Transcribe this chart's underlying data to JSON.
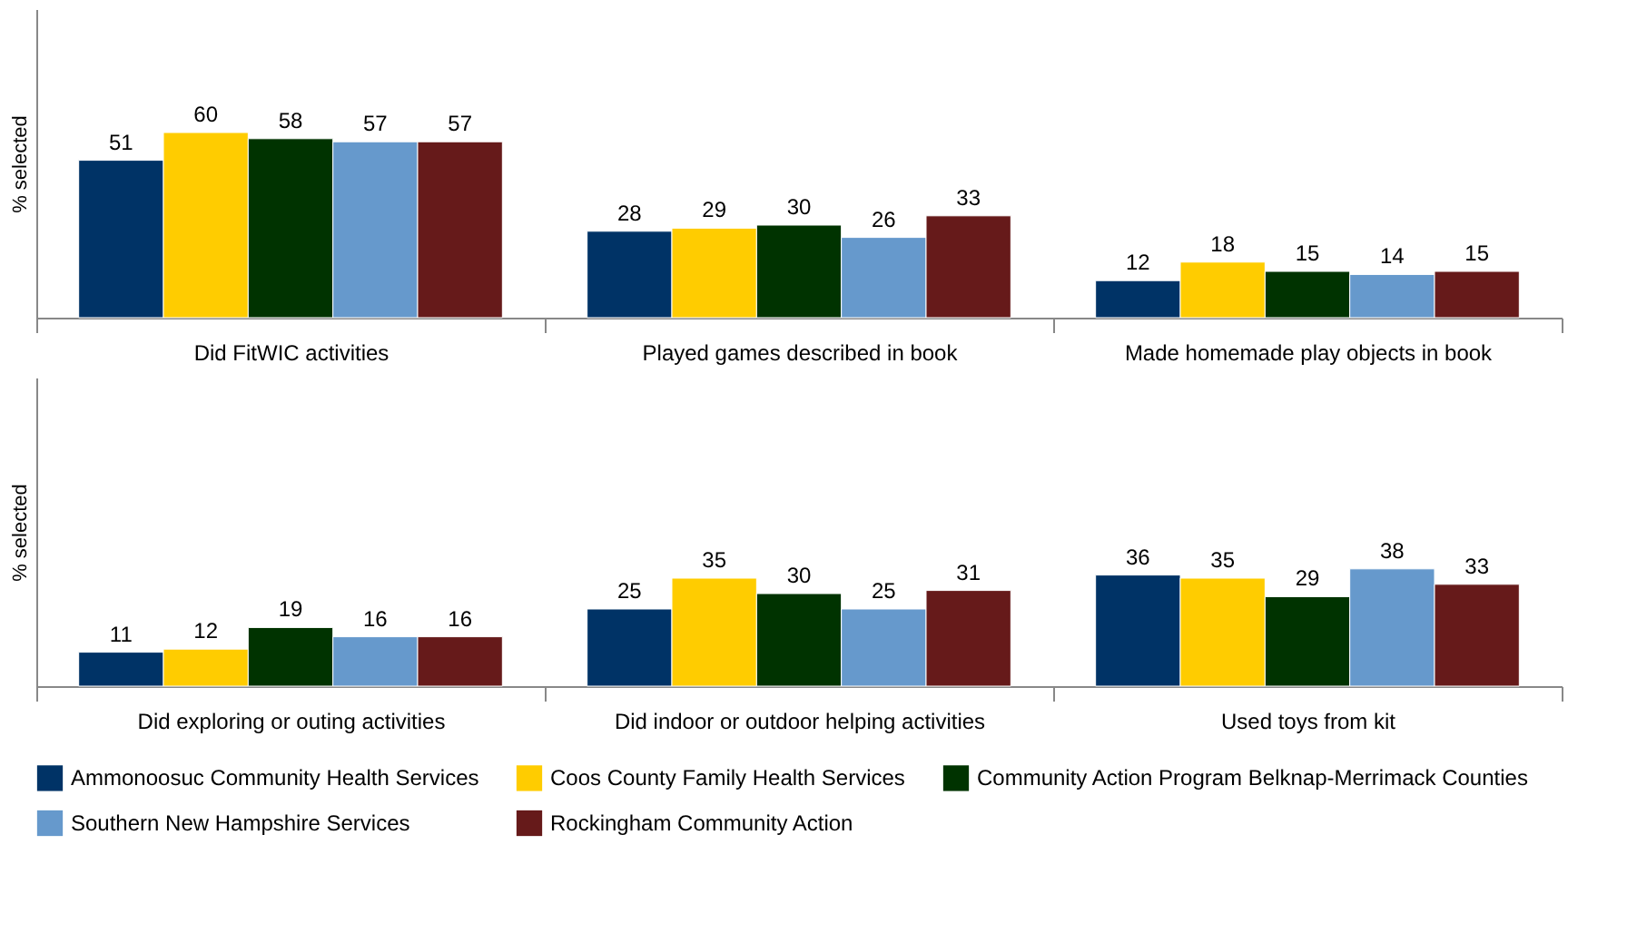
{
  "chart_data": [
    {
      "type": "bar",
      "ylabel": "% selected",
      "categories": [
        "Did FitWIC activities",
        "Played games described in book",
        "Made homemade play objects in book"
      ],
      "ylim": [
        0,
        100
      ],
      "tick_labels": "x",
      "data_labels": true,
      "grid": false,
      "legend": "bottom",
      "series": [
        {
          "name": "Ammonoosuc Community Health Services",
          "color": "#003366",
          "values": [
            51,
            28,
            12
          ]
        },
        {
          "name": "Coos County Family Health Services",
          "color": "#ffcc00",
          "values": [
            60,
            29,
            18
          ]
        },
        {
          "name": "Community Action Program Belknap-Merrimack Counties",
          "color": "#003300",
          "values": [
            58,
            30,
            15
          ]
        },
        {
          "name": "Southern New Hampshire Services",
          "color": "#6699cc",
          "values": [
            57,
            26,
            14
          ]
        },
        {
          "name": "Rockingham Community Action",
          "color": "#661a1a",
          "values": [
            57,
            33,
            15
          ]
        }
      ]
    },
    {
      "type": "bar",
      "ylabel": "% selected",
      "categories": [
        "Did exploring or outing activities",
        "Did indoor or outdoor helping activities",
        "Used toys from kit"
      ],
      "ylim": [
        0,
        100
      ],
      "tick_labels": "x",
      "data_labels": true,
      "grid": false,
      "legend": "bottom",
      "series": [
        {
          "name": "Ammonoosuc Community Health Services",
          "color": "#003366",
          "values": [
            11,
            25,
            36
          ]
        },
        {
          "name": "Coos County Family Health Services",
          "color": "#ffcc00",
          "values": [
            12,
            35,
            35
          ]
        },
        {
          "name": "Community Action Program Belknap-Merrimack Counties",
          "color": "#003300",
          "values": [
            19,
            30,
            29
          ]
        },
        {
          "name": "Southern New Hampshire Services",
          "color": "#6699cc",
          "values": [
            16,
            25,
            38
          ]
        },
        {
          "name": "Rockingham Community Action",
          "color": "#661a1a",
          "values": [
            16,
            31,
            33
          ]
        }
      ]
    }
  ]
}
